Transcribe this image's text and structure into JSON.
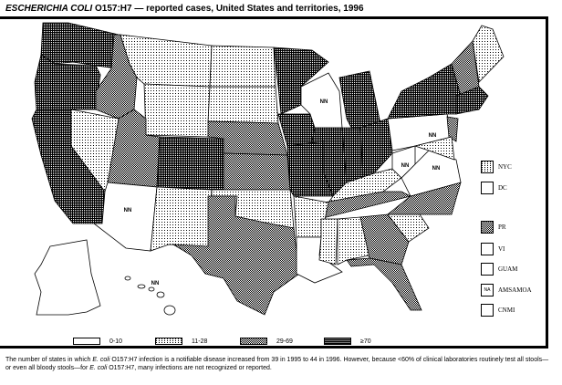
{
  "title": {
    "italic": "ESCHERICHIA COLI",
    "rest": " O157:H7 — reported cases, United States and territories, 1996"
  },
  "legend": [
    {
      "label": "0-10",
      "category": 0
    },
    {
      "label": "11-28",
      "category": 1
    },
    {
      "label": "29-69",
      "category": 2
    },
    {
      "label": "≥70",
      "category": 3
    }
  ],
  "not_notifiable_label": "NN",
  "state_categories": {
    "WA": 3,
    "OR": 3,
    "CA": 3,
    "NV": 1,
    "ID": 2,
    "MT": 1,
    "WY": 1,
    "UT": 2,
    "CO": 3,
    "AZ": 0,
    "NM": 1,
    "ND": 1,
    "SD": 1,
    "NE": 2,
    "KS": 2,
    "OK": 1,
    "TX": 2,
    "MN": 3,
    "IA": 3,
    "WI": 0,
    "MI": 3,
    "IL": 3,
    "MO": 3,
    "IN": 3,
    "OH": 3,
    "KY": 1,
    "TN": 2,
    "AR": 1,
    "LA": 0,
    "MS": 1,
    "AL": 1,
    "GA": 2,
    "FL": 2,
    "SC": 1,
    "NC": 2,
    "VA": 0,
    "WV": 0,
    "PA": 0,
    "NY": 3,
    "VTNH": 2,
    "ME": 1,
    "NEW_ENG_S": 3,
    "NJ": 2,
    "MDDE": 1,
    "AK": 0,
    "HI": 0
  },
  "not_notifiable": [
    "AZ",
    "WI",
    "PA",
    "WV",
    "VA",
    "HI"
  ],
  "territories": [
    {
      "label": "NYC",
      "category": 1,
      "box_text": ""
    },
    {
      "label": "DC",
      "category": 0,
      "box_text": ""
    },
    {
      "label": "PR",
      "category": 2,
      "box_text": ""
    },
    {
      "label": "VI",
      "category": 0,
      "box_text": ""
    },
    {
      "label": "GUAM",
      "category": 0,
      "box_text": ""
    },
    {
      "label": "AMSAMOA",
      "category": 0,
      "box_text": "NA"
    },
    {
      "label": "CNMI",
      "category": 0,
      "box_text": ""
    }
  ],
  "footnote_parts": [
    "The number of states in which ",
    "E. coli",
    " O157:H7 infection is a notifiable disease increased from 39 in 1995 to 44 in 1996. However, because <60% of clinical laboratories routinely test all stools—or even all bloody stools—for ",
    "E. coli",
    " O157:H7, many infections are not recognized or reported."
  ]
}
